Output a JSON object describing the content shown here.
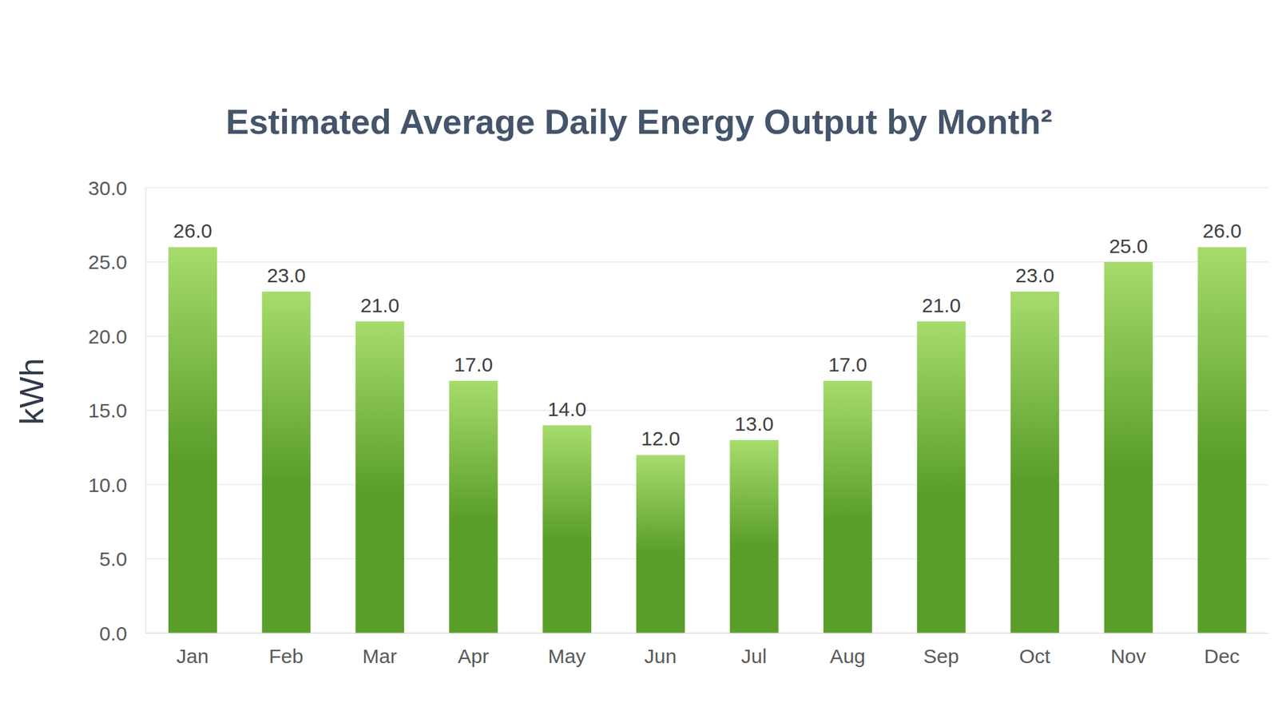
{
  "chart_data": {
    "type": "bar",
    "title": "Estimated Average Daily Energy Output by Month²",
    "y_label": "kWh",
    "categories": [
      "Jan",
      "Feb",
      "Mar",
      "Apr",
      "May",
      "Jun",
      "Jul",
      "Aug",
      "Sep",
      "Oct",
      "Nov",
      "Dec"
    ],
    "values": [
      26,
      23,
      21,
      17,
      14,
      12,
      13,
      17,
      21,
      23,
      25,
      26
    ],
    "value_labels": [
      "26.0",
      "23.0",
      "21.0",
      "17.0",
      "14.0",
      "12.0",
      "13.0",
      "17.0",
      "21.0",
      "23.0",
      "25.0",
      "26.0"
    ],
    "color": "#5a9e2a",
    "ylim": [
      0,
      30
    ],
    "yticks": [
      {
        "value": 0,
        "label": "0.0"
      },
      {
        "value": 5,
        "label": "5.0"
      },
      {
        "value": 10,
        "label": "10.0"
      },
      {
        "value": 15,
        "label": "15.0"
      },
      {
        "value": 20,
        "label": "20.0"
      },
      {
        "value": 25,
        "label": "25.0"
      },
      {
        "value": 30,
        "label": "30.0"
      }
    ],
    "grid": true,
    "data_labels": true
  }
}
